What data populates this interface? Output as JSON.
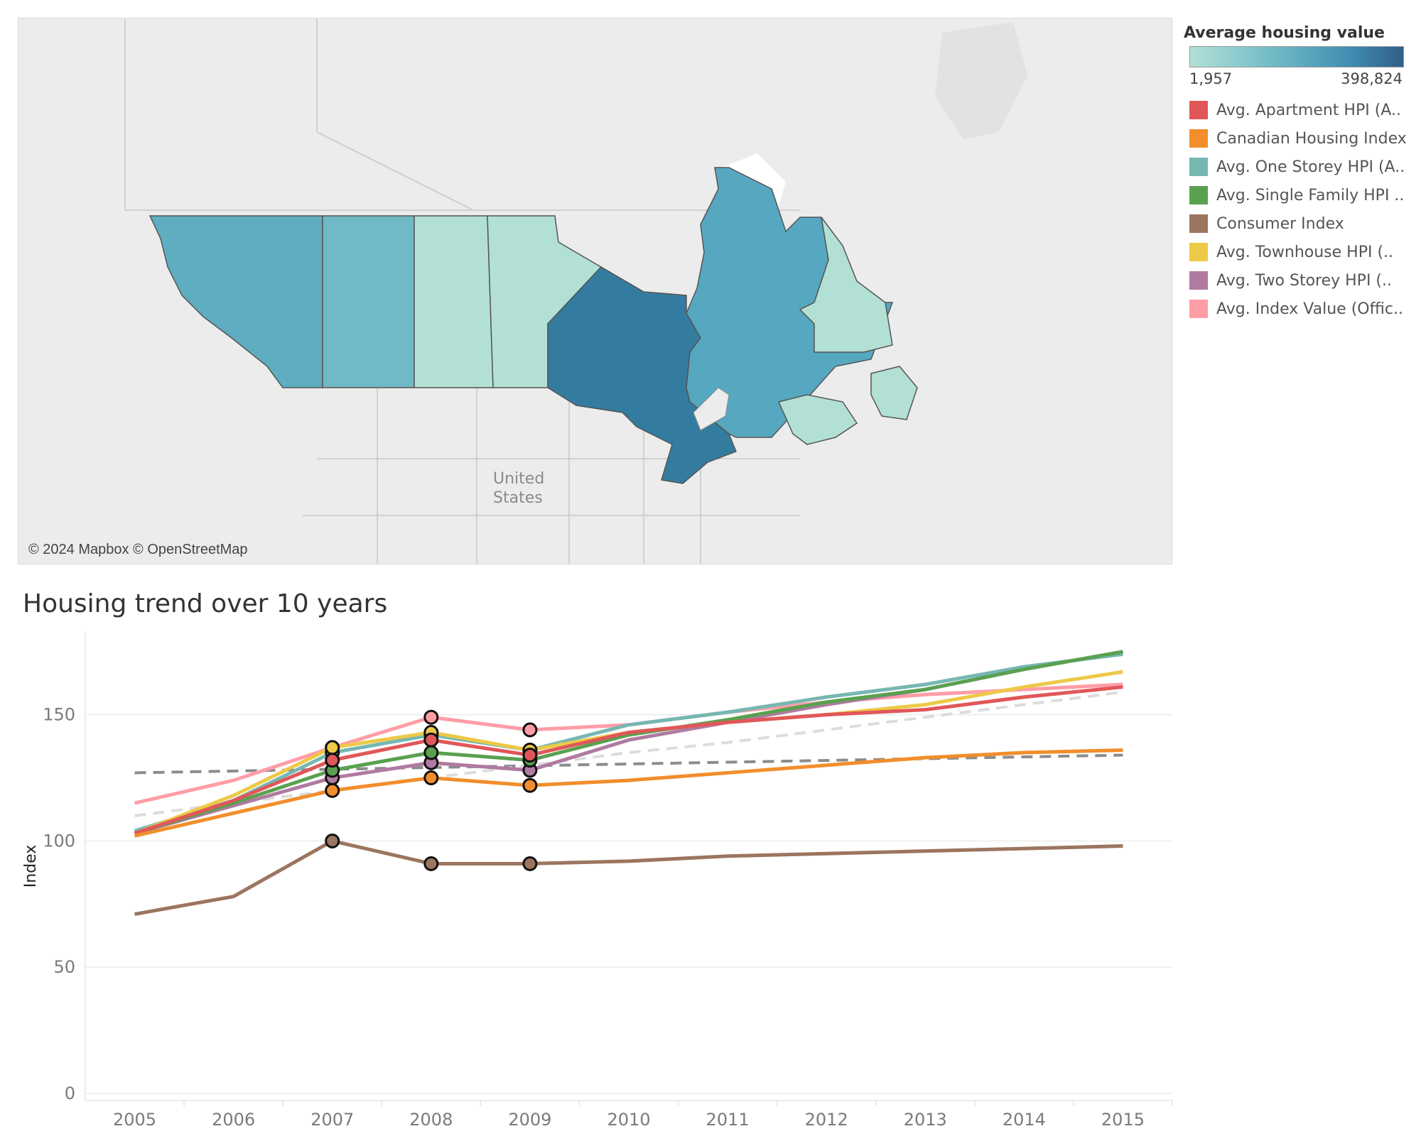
{
  "map": {
    "attribution": "© 2024 Mapbox © OpenStreetMap",
    "place_label_line1": "United",
    "place_label_line2": "States",
    "fill_colors": {
      "british_columbia": "#5eadc1",
      "alberta": "#70b9c6",
      "saskatchewan": "#b2e0d5",
      "manitoba": "#b2e0d5",
      "ontario": "#347c9f",
      "quebec": "#55a8c0",
      "newfoundland_labrador": "#b2e0d5",
      "maritimes": "#b2e0d5"
    }
  },
  "legend": {
    "title": "Average housing value",
    "min_label": "1,957",
    "max_label": "398,824",
    "items": [
      {
        "label": "Avg. Apartment HPI (A..",
        "color": "#e15759"
      },
      {
        "label": "Canadian Housing Index",
        "color": "#f28e2b"
      },
      {
        "label": "Avg. One Storey HPI (A..",
        "color": "#76b7b2"
      },
      {
        "label": "Avg. Single Family HPI ..",
        "color": "#59a14f"
      },
      {
        "label": "Consumer Index",
        "color": "#9c755f"
      },
      {
        "label": "Avg. Townhouse HPI (..",
        "color": "#edc948"
      },
      {
        "label": "Avg. Two Storey HPI (..",
        "color": "#b07aa1"
      },
      {
        "label": "Avg. Index Value (Offic..",
        "color": "#ff9da7"
      }
    ]
  },
  "chart": {
    "title": "Housing trend over 10 years"
  },
  "chart_data": {
    "type": "line",
    "title": "Housing trend over 10 years",
    "xlabel": "",
    "ylabel": "Index",
    "x": [
      2005,
      2006,
      2007,
      2008,
      2009,
      2010,
      2011,
      2012,
      2013,
      2014,
      2015
    ],
    "ylim": [
      0,
      180
    ],
    "yticks": [
      0,
      50,
      100,
      150
    ],
    "grid": "horizontal",
    "highlighted_years": [
      2007,
      2008,
      2009
    ],
    "series": [
      {
        "name": "Avg. Index Value (Offic..",
        "color": "#ff9da7",
        "values": [
          115,
          124,
          137,
          149,
          144,
          146,
          151,
          155,
          158,
          160,
          162
        ]
      },
      {
        "name": "Avg. One Storey HPI (A..",
        "color": "#76b7b2",
        "values": [
          104,
          116,
          135,
          142,
          136,
          146,
          151,
          157,
          162,
          169,
          174
        ]
      },
      {
        "name": "Avg. Townhouse HPI (..",
        "color": "#edc948",
        "values": [
          103,
          118,
          137,
          143,
          136,
          143,
          147,
          150,
          154,
          161,
          167
        ]
      },
      {
        "name": "Avg. Two Storey HPI (..",
        "color": "#b07aa1",
        "values": [
          103,
          114,
          125,
          131,
          128,
          140,
          147,
          154,
          160,
          168,
          175
        ]
      },
      {
        "name": "Avg. Single Family HPI ..",
        "color": "#59a14f",
        "values": [
          103,
          115,
          128,
          135,
          132,
          142,
          148,
          155,
          160,
          168,
          175
        ]
      },
      {
        "name": "Avg. Apartment HPI (A..",
        "color": "#e15759",
        "values": [
          103,
          116,
          132,
          140,
          134,
          143,
          147,
          150,
          152,
          157,
          161
        ]
      },
      {
        "name": "Canadian Housing Index",
        "color": "#f28e2b",
        "values": [
          102,
          111,
          120,
          125,
          122,
          124,
          127,
          130,
          133,
          135,
          136
        ]
      },
      {
        "name": "Consumer Index",
        "color": "#9c755f",
        "values": [
          71,
          78,
          100,
          91,
          91,
          92,
          94,
          95,
          96,
          97,
          98
        ]
      }
    ],
    "trend_lines": [
      {
        "style": "dashed",
        "color": "#8c8c8c",
        "values": [
          127,
          127.7,
          128.4,
          129.1,
          129.8,
          130.5,
          131.2,
          131.9,
          132.6,
          133.3,
          134
        ]
      },
      {
        "style": "dashed",
        "color": "#dcdcdc",
        "values": [
          110,
          115,
          120,
          125,
          130,
          135,
          139,
          144,
          149,
          154,
          159
        ]
      }
    ]
  }
}
